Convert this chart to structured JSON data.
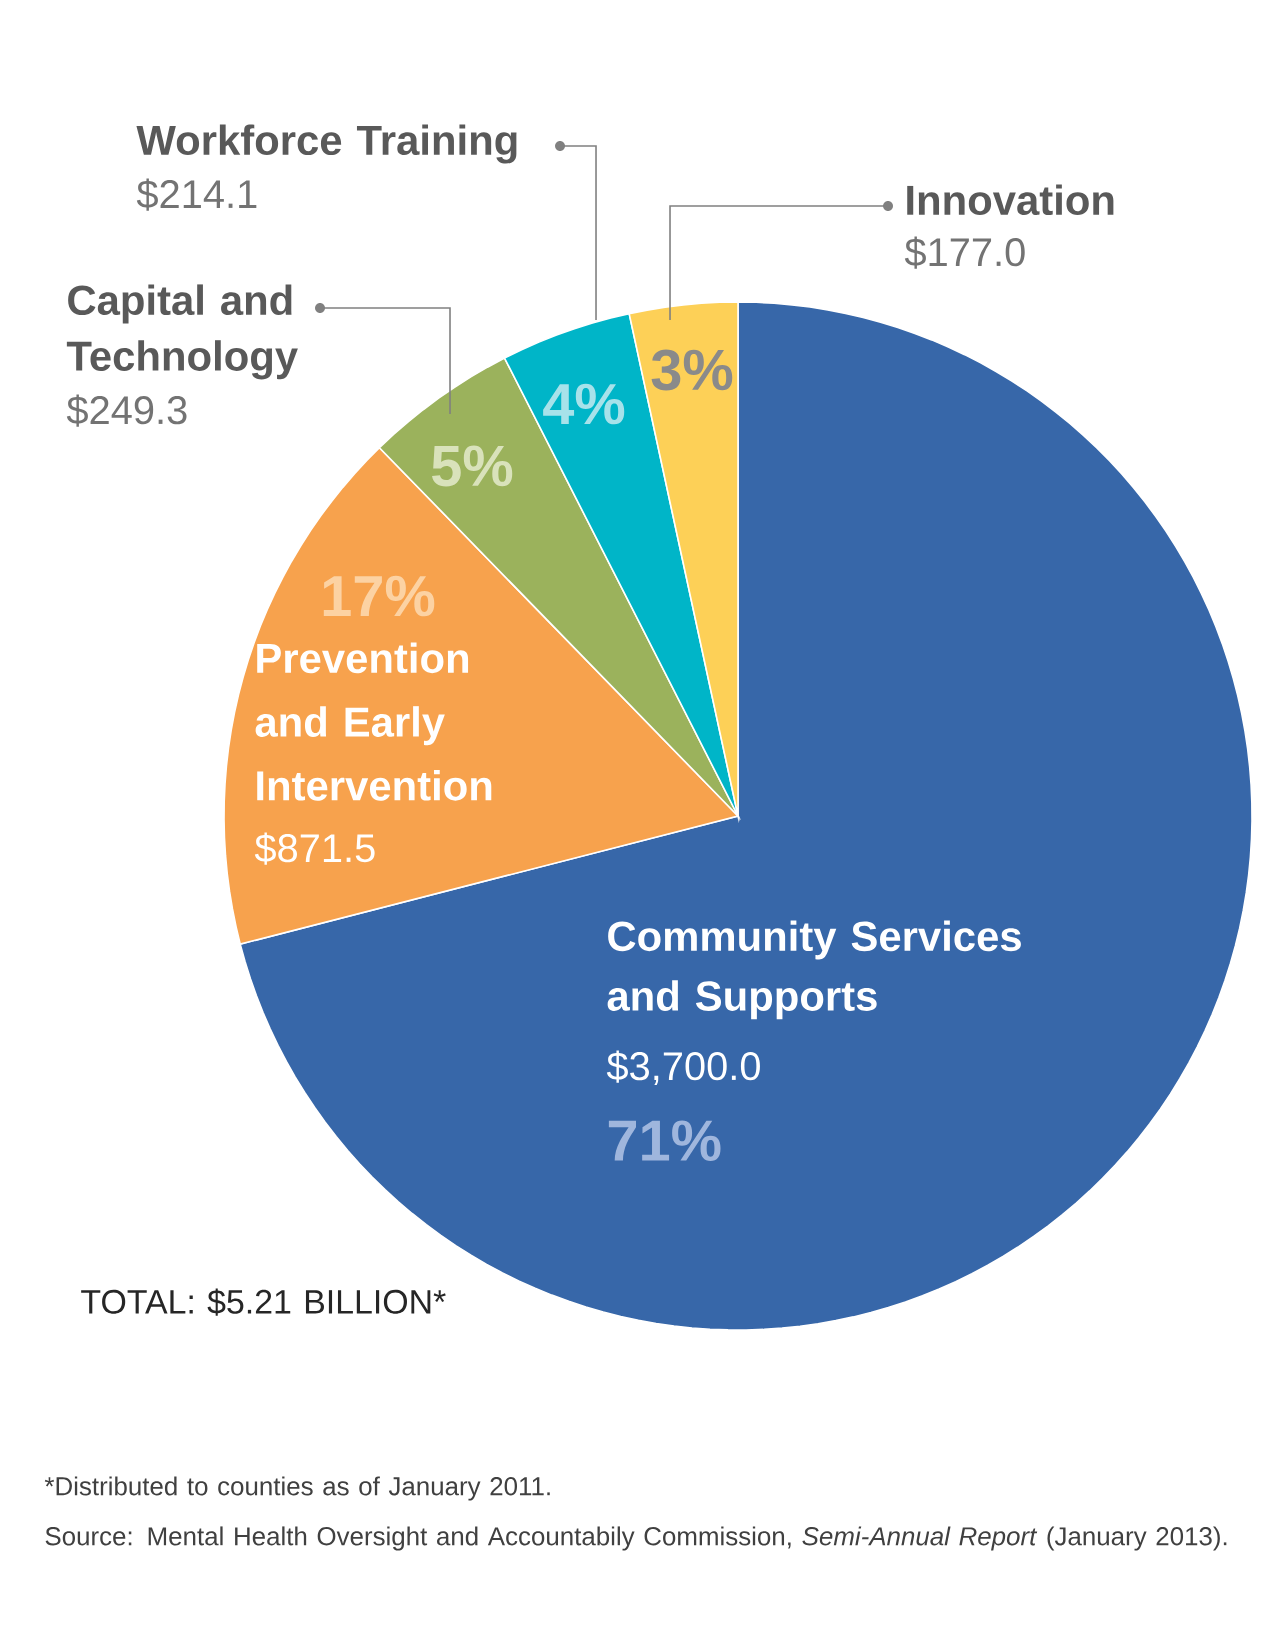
{
  "chart_data": {
    "type": "pie",
    "categories": [
      "Community Services and Supports",
      "Prevention and Early Intervention",
      "Capital and Technology",
      "Workforce Training",
      "Innovation"
    ],
    "values": [
      3700.0,
      871.5,
      249.3,
      214.1,
      177.0
    ],
    "value_labels": [
      "$3,700.0",
      "$871.5",
      "$249.3",
      "$214.1",
      "$177.0"
    ],
    "colors": [
      "#3767a9",
      "#f7a24d",
      "#9bb25c",
      "#00b5c8",
      "#fdd057"
    ],
    "annotations": [
      "71%",
      "17%",
      "5%",
      "4%",
      "3%",
      "TOTAL: $5.21 BILLION*",
      "*Distributed to counties as of January 2011.",
      "Source: Mental Health Oversight and Accountabily Commission, *Semi-Annual Report* (January 2013)."
    ]
  }
}
